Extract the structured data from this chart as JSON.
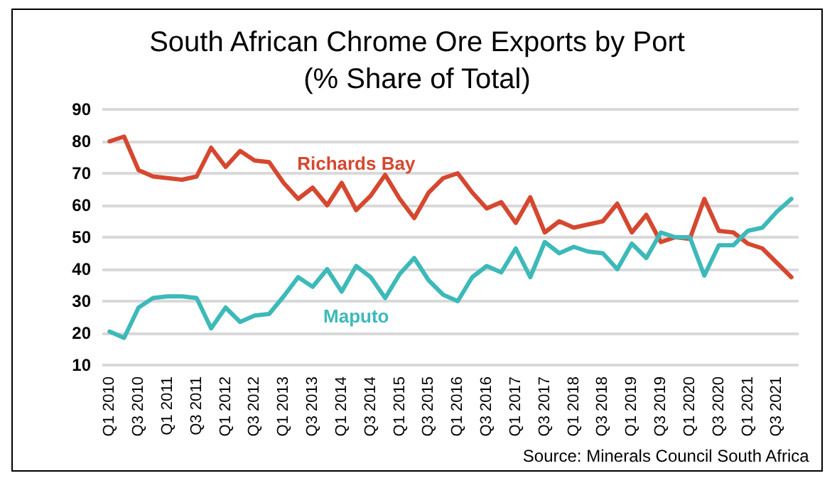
{
  "chart_data": {
    "type": "line",
    "title": "South African Chrome Ore Exports by Port",
    "subtitle": "(% Share of Total)",
    "categories": [
      "Q1 2010",
      null,
      "Q3 2010",
      null,
      "Q1 2011",
      null,
      "Q3 2011",
      null,
      "Q1 2012",
      null,
      "Q3 2012",
      null,
      "Q1 2013",
      null,
      "Q3 2013",
      null,
      "Q1 2014",
      null,
      "Q3 2014",
      null,
      "Q1 2015",
      null,
      "Q3 2015",
      null,
      "Q1 2016",
      null,
      "Q3 2016",
      null,
      "Q1 2017",
      null,
      "Q3 2017",
      null,
      "Q1 2018",
      null,
      "Q3 2018",
      null,
      "Q1 2019",
      null,
      "Q3 2019",
      null,
      "Q1 2020",
      null,
      "Q3 2020",
      null,
      "Q1 2021",
      null,
      "Q3 2021",
      null
    ],
    "series": [
      {
        "name": "Richards Bay",
        "color": "#d6472f",
        "values": [
          80,
          81.5,
          71,
          69,
          68.5,
          68,
          69,
          78,
          72,
          77,
          74,
          73.5,
          67,
          62,
          65.5,
          60,
          67,
          58.5,
          63,
          69.5,
          62,
          56,
          64,
          68.5,
          70,
          64,
          59,
          61,
          54.5,
          62.5,
          51.5,
          55,
          53,
          54,
          55,
          60.5,
          51.5,
          57,
          48.5,
          50,
          49.5,
          62,
          52,
          51.5,
          48,
          46.5,
          42,
          37.5
        ]
      },
      {
        "name": "Maputo",
        "color": "#3db9b9",
        "values": [
          20.5,
          18.5,
          28,
          31,
          31.5,
          31.5,
          31,
          21.5,
          28,
          23.5,
          25.5,
          26,
          31.5,
          37.5,
          34.5,
          40,
          33,
          41,
          37.5,
          31,
          38.5,
          43.5,
          36.5,
          32,
          30,
          37.5,
          41,
          39,
          46.5,
          37.5,
          48.5,
          45,
          47,
          45.5,
          45,
          40,
          48,
          43.5,
          51.5,
          50,
          50,
          38,
          47.5,
          47.5,
          52,
          53,
          58,
          62
        ]
      }
    ],
    "ylim": [
      10,
      90
    ],
    "yticks": [
      10,
      20,
      30,
      40,
      50,
      60,
      70,
      80,
      90
    ],
    "grid": "y",
    "legend": false,
    "marker": "none",
    "line_style": "solid",
    "annotations": [
      "Source: Minerals Council South Africa"
    ]
  }
}
